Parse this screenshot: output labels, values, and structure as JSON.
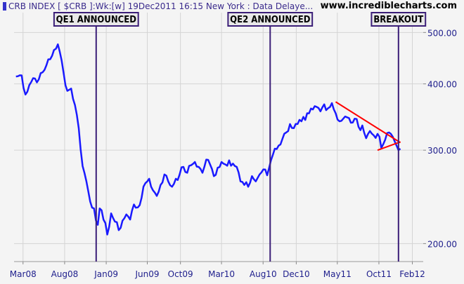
{
  "header": {
    "title": "CRB INDEX [ $CRB ]:Wk:[w]  19Dec2011 16:15 New York  : Data Delaye...",
    "site": "www.incrediblecharts.com"
  },
  "annotations": [
    {
      "label": "QE1 ANNOUNCED",
      "date": "2008-11-25"
    },
    {
      "label": "QE2 ANNOUNCED",
      "date": "2010-08-27"
    },
    {
      "label": "BREAKOUT",
      "date": "2011-12-12"
    }
  ],
  "colors": {
    "background": "#f4f4f4",
    "grid": "#d4d4d4",
    "series": "#1a1aff",
    "trendline": "#ff0000",
    "annotation_box": "#e8e8e8",
    "annotation_border": "#3b1e78",
    "axis_text": "#1e1e8c"
  },
  "chart_data": {
    "type": "line",
    "title": "CRB INDEX [ $CRB ]:Wk:[w]",
    "xlabel": "",
    "ylabel": "",
    "y_scale": "log",
    "y_axis_side": "right",
    "ylim": [
      185,
      545
    ],
    "xlim": [
      "2008-01-28",
      "2012-03-12"
    ],
    "x_tick_labels": [
      "Mar08",
      "Aug08",
      "Jan09",
      "Jun09",
      "Oct09",
      "Mar10",
      "Aug10",
      "Dec10",
      "May11",
      "Oct11",
      "Feb12"
    ],
    "x_tick_dates": [
      "2008-03-01",
      "2008-08-01",
      "2009-01-01",
      "2009-06-01",
      "2009-10-01",
      "2010-03-01",
      "2010-08-01",
      "2010-12-01",
      "2011-05-01",
      "2011-10-01",
      "2012-02-01"
    ],
    "y_ticks": [
      200,
      300,
      400,
      500
    ],
    "y_tick_labels": [
      "200.00",
      "300.00",
      "400.00",
      "500.00"
    ],
    "grid": true,
    "legend": "none",
    "series": [
      {
        "x": [
          "2008-02-04",
          "2008-02-25",
          "2008-03-10",
          "2008-03-24",
          "2008-04-07",
          "2008-04-28",
          "2008-05-19",
          "2008-06-02",
          "2008-06-16",
          "2008-06-30",
          "2008-07-07",
          "2008-07-14",
          "2008-07-28",
          "2008-08-11",
          "2008-08-25",
          "2008-09-08",
          "2008-09-22",
          "2008-10-06",
          "2008-10-20",
          "2008-11-03",
          "2008-11-17",
          "2008-12-01",
          "2008-12-08",
          "2008-12-22",
          "2009-01-05",
          "2009-01-19",
          "2009-02-02",
          "2009-02-16",
          "2009-03-02",
          "2009-03-16",
          "2009-03-30",
          "2009-04-13",
          "2009-04-27",
          "2009-05-11",
          "2009-05-25",
          "2009-06-08",
          "2009-06-22",
          "2009-07-06",
          "2009-07-20",
          "2009-08-03",
          "2009-08-17",
          "2009-08-31",
          "2009-09-14",
          "2009-09-28",
          "2009-10-12",
          "2009-10-26",
          "2009-11-09",
          "2009-11-23",
          "2009-12-07",
          "2009-12-21",
          "2010-01-04",
          "2010-01-18",
          "2010-02-01",
          "2010-02-15",
          "2010-03-01",
          "2010-03-15",
          "2010-03-29",
          "2010-04-12",
          "2010-04-26",
          "2010-05-10",
          "2010-05-24",
          "2010-06-07",
          "2010-06-21",
          "2010-07-05",
          "2010-07-19",
          "2010-08-02",
          "2010-08-16",
          "2010-08-30",
          "2010-09-13",
          "2010-09-27",
          "2010-10-11",
          "2010-10-25",
          "2010-11-08",
          "2010-11-22",
          "2010-12-06",
          "2010-12-20",
          "2011-01-03",
          "2011-01-17",
          "2011-01-31",
          "2011-02-14",
          "2011-02-28",
          "2011-03-14",
          "2011-03-28",
          "2011-04-11",
          "2011-04-25",
          "2011-05-09",
          "2011-05-23",
          "2011-06-06",
          "2011-06-20",
          "2011-07-04",
          "2011-07-18",
          "2011-08-01",
          "2011-08-15",
          "2011-08-29",
          "2011-09-12",
          "2011-09-26",
          "2011-10-10",
          "2011-10-24",
          "2011-11-07",
          "2011-11-21",
          "2011-12-05",
          "2011-12-19"
        ],
        "y": [
          413,
          415,
          382,
          398,
          410,
          408,
          425,
          445,
          452,
          466,
          475,
          460,
          420,
          388,
          392,
          365,
          330,
          280,
          262,
          240,
          233,
          217,
          233,
          222,
          208,
          228,
          220,
          212,
          221,
          227,
          222,
          237,
          234,
          244,
          260,
          265,
          252,
          246,
          258,
          270,
          262,
          256,
          265,
          270,
          279,
          272,
          281,
          285,
          279,
          272,
          288,
          282,
          268,
          278,
          285,
          282,
          287,
          283,
          279,
          262,
          258,
          256,
          268,
          262,
          270,
          276,
          269,
          287,
          302,
          306,
          315,
          324,
          336,
          330,
          336,
          340,
          342,
          352,
          358,
          362,
          355,
          366,
          360,
          368,
          352,
          340,
          344,
          346,
          338,
          344,
          332,
          334,
          316,
          326,
          320,
          322,
          303,
          314,
          324,
          318,
          306,
          302
        ]
      }
    ],
    "trendlines": [
      {
        "points": [
          {
            "x": "2011-04-25",
            "y": 370
          },
          {
            "x": "2011-12-19",
            "y": 310
          }
        ]
      },
      {
        "points": [
          {
            "x": "2011-09-26",
            "y": 300
          },
          {
            "x": "2011-12-19",
            "y": 311
          }
        ]
      }
    ]
  }
}
